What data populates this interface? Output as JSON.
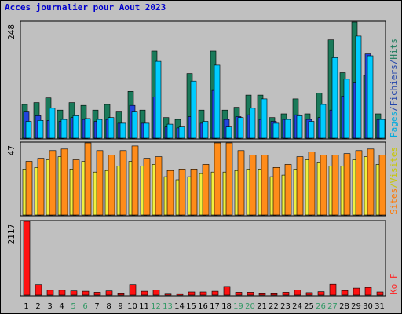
{
  "title": "Acces journalier pour Aout 2023",
  "colors": {
    "background": "#c0c0c0",
    "title": "#0000cc",
    "visits": "#1a7a5a",
    "pages": "#00ccff",
    "files": "#2244dd",
    "sites": "#f0f040",
    "visitors": "#ff8c1a",
    "kb": "#ff1111",
    "hits_label": "#1a7a5a",
    "files_label": "#2244aa",
    "pages_label": "#00aadd",
    "sites_label": "#c8c800",
    "visits_label": "#ff7700",
    "kb_label": "#ff2222",
    "weekend_day": "#339966"
  },
  "chart_data": [
    {
      "type": "bar",
      "name": "hits-files-pages",
      "ymax_label": "248",
      "ylim": [
        0,
        248
      ],
      "legend": [
        {
          "text": "Pages",
          "color_key": "pages_label"
        },
        {
          "text": "/",
          "color_key": "files_label"
        },
        {
          "text": "Fichiers",
          "color_key": "files_label"
        },
        {
          "text": "/",
          "color_key": "files_label"
        },
        {
          "text": "Hits",
          "color_key": "hits_label"
        }
      ],
      "categories": [
        "1",
        "2",
        "3",
        "4",
        "5",
        "6",
        "7",
        "8",
        "9",
        "10",
        "11",
        "12",
        "13",
        "14",
        "15",
        "16",
        "17",
        "18",
        "19",
        "20",
        "21",
        "22",
        "23",
        "24",
        "25",
        "26",
        "27",
        "28",
        "29",
        "30",
        "31"
      ],
      "series": [
        {
          "name": "Hits",
          "color_key": "visits",
          "values": [
            72,
            76,
            86,
            60,
            76,
            70,
            60,
            72,
            56,
            100,
            60,
            186,
            44,
            40,
            138,
            60,
            186,
            60,
            66,
            92,
            92,
            44,
            52,
            84,
            52,
            96,
            210,
            140,
            248,
            134,
            52
          ]
        },
        {
          "name": "Fichiers",
          "color_key": "files",
          "values": [
            56,
            48,
            38,
            36,
            44,
            40,
            36,
            40,
            32,
            70,
            32,
            88,
            24,
            22,
            46,
            32,
            102,
            40,
            46,
            50,
            40,
            36,
            40,
            50,
            40,
            44,
            60,
            90,
            118,
            180,
            40
          ]
        },
        {
          "name": "Pages",
          "color_key": "pages",
          "values": [
            36,
            38,
            64,
            40,
            48,
            42,
            40,
            44,
            32,
            56,
            32,
            164,
            30,
            24,
            122,
            36,
            156,
            24,
            44,
            64,
            84,
            32,
            40,
            48,
            36,
            72,
            172,
            126,
            218,
            176,
            40
          ]
        }
      ]
    },
    {
      "type": "bar",
      "name": "sites-visits",
      "ymax_label": "47",
      "ylim": [
        0,
        47
      ],
      "legend": [
        {
          "text": "Sites",
          "color_key": "visits_label"
        },
        {
          "text": "/",
          "color_key": "sites_label"
        },
        {
          "text": "Visites",
          "color_key": "sites_label"
        }
      ],
      "categories": [
        "1",
        "2",
        "3",
        "4",
        "5",
        "6",
        "7",
        "8",
        "9",
        "10",
        "11",
        "12",
        "13",
        "14",
        "15",
        "16",
        "17",
        "18",
        "19",
        "20",
        "21",
        "22",
        "23",
        "24",
        "25",
        "26",
        "27",
        "28",
        "29",
        "30",
        "31"
      ],
      "series": [
        {
          "name": "Visites",
          "color_key": "sites",
          "values": [
            30,
            31,
            36,
            38,
            30,
            35,
            28,
            29,
            32,
            35,
            32,
            33,
            25,
            23,
            25,
            27,
            28,
            28,
            29,
            30,
            30,
            25,
            26,
            30,
            36,
            34,
            32,
            32,
            36,
            38,
            33
          ]
        },
        {
          "name": "Sites",
          "color_key": "visitors",
          "values": [
            35,
            37,
            42,
            43,
            36,
            47,
            42,
            39,
            42,
            45,
            37,
            38,
            29,
            30,
            30,
            33,
            47,
            47,
            42,
            39,
            39,
            31,
            33,
            38,
            41,
            39,
            39,
            40,
            42,
            43,
            39
          ]
        }
      ]
    },
    {
      "type": "bar",
      "name": "kb",
      "ymax_label": "2117",
      "ylim": [
        0,
        2117
      ],
      "legend": [
        {
          "text": "Ko F",
          "color_key": "kb_label"
        }
      ],
      "categories": [
        "1",
        "2",
        "3",
        "4",
        "5",
        "6",
        "7",
        "8",
        "9",
        "10",
        "11",
        "12",
        "13",
        "14",
        "15",
        "16",
        "17",
        "18",
        "19",
        "20",
        "21",
        "22",
        "23",
        "24",
        "25",
        "26",
        "27",
        "28",
        "29",
        "30",
        "31"
      ],
      "series": [
        {
          "name": "Ko F",
          "color_key": "kb",
          "values": [
            2117,
            300,
            140,
            140,
            120,
            110,
            80,
            120,
            60,
            300,
            110,
            150,
            50,
            40,
            90,
            90,
            110,
            250,
            80,
            80,
            60,
            60,
            80,
            150,
            70,
            100,
            310,
            130,
            200,
            220,
            90
          ]
        }
      ]
    }
  ],
  "xaxis": {
    "labels": [
      "1",
      "2",
      "3",
      "4",
      "5",
      "6",
      "7",
      "8",
      "9",
      "10",
      "11",
      "12",
      "13",
      "14",
      "15",
      "16",
      "17",
      "18",
      "19",
      "20",
      "21",
      "22",
      "23",
      "24",
      "25",
      "26",
      "27",
      "28",
      "29",
      "30",
      "31"
    ],
    "weekend_days": [
      "5",
      "6",
      "12",
      "13",
      "19",
      "20",
      "26",
      "27"
    ]
  }
}
